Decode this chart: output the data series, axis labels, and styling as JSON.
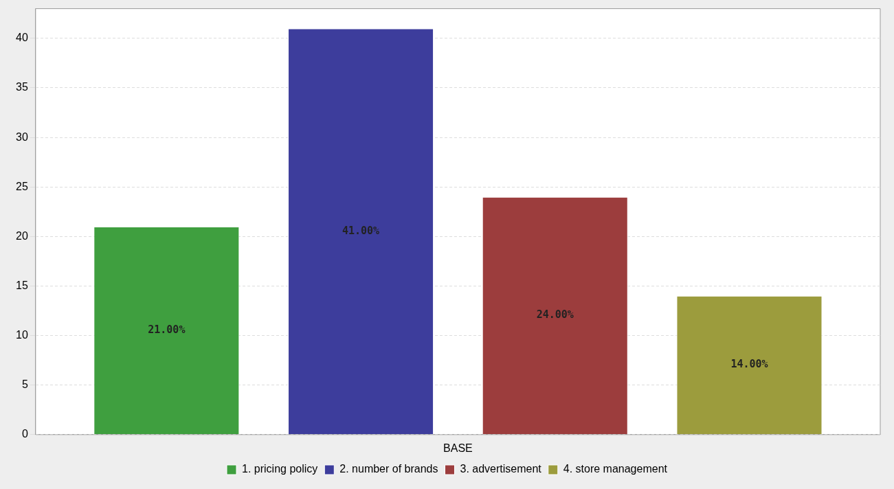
{
  "chart_data": {
    "type": "bar",
    "categories": [
      "BASE"
    ],
    "series": [
      {
        "name": "1. pricing policy",
        "color": "#3f9f3f",
        "values": [
          21
        ],
        "value_labels": [
          "21.00%"
        ]
      },
      {
        "name": "2. number of brands",
        "color": "#3d3d9c",
        "values": [
          41
        ],
        "value_labels": [
          "41.00%"
        ]
      },
      {
        "name": "3. advertisement",
        "color": "#9c3d3d",
        "values": [
          24
        ],
        "value_labels": [
          "24.00%"
        ]
      },
      {
        "name": "4. store management",
        "color": "#9c9c3d",
        "values": [
          14
        ],
        "value_labels": [
          "14.00%"
        ]
      }
    ],
    "ylim": [
      0,
      43
    ],
    "yticks": [
      0,
      5,
      10,
      15,
      20,
      25,
      30,
      35,
      40
    ],
    "grid": "y",
    "legend": "bottom"
  }
}
